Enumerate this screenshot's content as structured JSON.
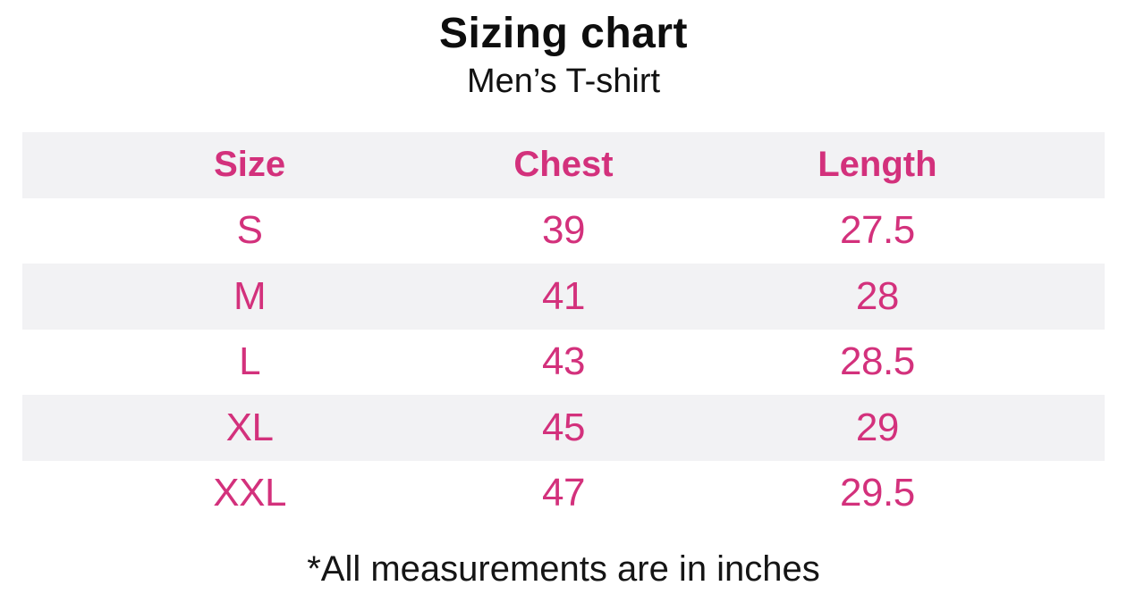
{
  "chart_data": {
    "type": "table",
    "title": "Sizing chart",
    "subtitle": "Men’s T-shirt",
    "columns": [
      "Size",
      "Chest",
      "Length"
    ],
    "rows": [
      [
        "S",
        "39",
        "27.5"
      ],
      [
        "M",
        "41",
        "28"
      ],
      [
        "L",
        "43",
        "28.5"
      ],
      [
        "XL",
        "45",
        "29"
      ],
      [
        "XXL",
        "47",
        "29.5"
      ]
    ],
    "annotations": [
      "*All measurements are in inches"
    ],
    "layout": {
      "striped": true,
      "header_band_shaded": true,
      "stripe_color": "#f2f2f4",
      "background_color": "#ffffff",
      "header_text_color": "#d3317c",
      "data_text_color": "#d3317c",
      "title_color": "#0e0e0e",
      "units": "inches"
    }
  }
}
